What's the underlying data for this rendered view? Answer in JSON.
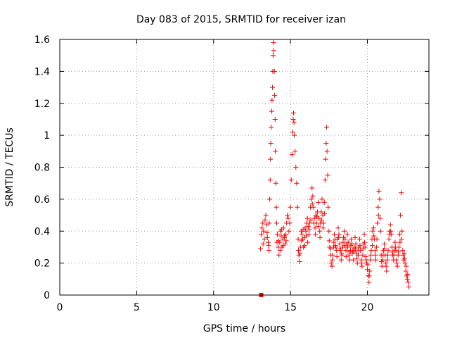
{
  "chart_data": {
    "type": "scatter",
    "title": "Day 083 of 2015, SRMTID for receiver izan",
    "xlabel": "GPS time / hours",
    "ylabel": "SRMTID / TECUs",
    "xlim": [
      0,
      24
    ],
    "ylim": [
      0,
      1.6
    ],
    "x_ticks": [
      0,
      5,
      10,
      15,
      20
    ],
    "x_tick_labels": [
      "0",
      "5",
      "10",
      "15",
      "20"
    ],
    "y_ticks": [
      0,
      0.2,
      0.4,
      0.6,
      0.8,
      1.0,
      1.2,
      1.4,
      1.6
    ],
    "y_tick_labels": [
      "0",
      "0.2",
      "0.4",
      "0.6",
      "0.8",
      "1",
      "1.2",
      "1.4",
      "1.6"
    ],
    "grid": true,
    "marker": "plus",
    "color": "#ff0000",
    "square_markers": [
      {
        "x": 13.1,
        "y": 0.0
      }
    ],
    "series": [
      {
        "name": "SRMTID",
        "points": [
          [
            13.05,
            0.29
          ],
          [
            13.1,
            0.38
          ],
          [
            13.15,
            0.42
          ],
          [
            13.2,
            0.45
          ],
          [
            13.25,
            0.4
          ],
          [
            13.3,
            0.35
          ],
          [
            13.35,
            0.47
          ],
          [
            13.4,
            0.5
          ],
          [
            13.45,
            0.44
          ],
          [
            13.5,
            0.36
          ],
          [
            13.55,
            0.33
          ],
          [
            13.6,
            0.28
          ],
          [
            13.62,
            0.45
          ],
          [
            13.65,
            0.6
          ],
          [
            13.68,
            0.72
          ],
          [
            13.7,
            0.85
          ],
          [
            13.72,
            0.95
          ],
          [
            13.75,
            1.05
          ],
          [
            13.78,
            1.15
          ],
          [
            13.8,
            1.22
          ],
          [
            13.83,
            1.3
          ],
          [
            13.85,
            1.4
          ],
          [
            13.87,
            1.5
          ],
          [
            13.9,
            1.58
          ],
          [
            13.92,
            1.53
          ],
          [
            13.95,
            1.4
          ],
          [
            13.97,
            1.25
          ],
          [
            14.0,
            1.1
          ],
          [
            14.02,
            0.9
          ],
          [
            14.05,
            0.7
          ],
          [
            14.08,
            0.55
          ],
          [
            14.1,
            0.45
          ],
          [
            14.15,
            0.38
          ],
          [
            14.2,
            0.3
          ],
          [
            14.25,
            0.25
          ],
          [
            14.3,
            0.33
          ],
          [
            14.35,
            0.4
          ],
          [
            14.4,
            0.37
          ],
          [
            14.45,
            0.3
          ],
          [
            14.5,
            0.35
          ],
          [
            14.55,
            0.42
          ],
          [
            14.6,
            0.37
          ],
          [
            14.65,
            0.32
          ],
          [
            14.7,
            0.38
          ],
          [
            14.75,
            0.45
          ],
          [
            14.8,
            0.5
          ],
          [
            14.85,
            0.48
          ],
          [
            14.9,
            0.4
          ],
          [
            14.95,
            0.45
          ],
          [
            15.0,
            0.55
          ],
          [
            15.05,
            0.72
          ],
          [
            15.1,
            0.88
          ],
          [
            15.15,
            1.02
          ],
          [
            15.18,
            1.1
          ],
          [
            15.2,
            1.14
          ],
          [
            15.23,
            1.08
          ],
          [
            15.26,
            1.0
          ],
          [
            15.3,
            0.9
          ],
          [
            15.35,
            0.8
          ],
          [
            15.4,
            0.7
          ],
          [
            15.45,
            0.55
          ],
          [
            15.5,
            0.35
          ],
          [
            15.55,
            0.25
          ],
          [
            15.6,
            0.21
          ],
          [
            15.65,
            0.3
          ],
          [
            15.7,
            0.4
          ],
          [
            15.75,
            0.38
          ],
          [
            15.8,
            0.35
          ],
          [
            15.85,
            0.3
          ],
          [
            15.9,
            0.36
          ],
          [
            15.95,
            0.42
          ],
          [
            16.0,
            0.4
          ],
          [
            16.05,
            0.45
          ],
          [
            16.1,
            0.48
          ],
          [
            16.15,
            0.43
          ],
          [
            16.2,
            0.38
          ],
          [
            16.25,
            0.45
          ],
          [
            16.3,
            0.55
          ],
          [
            16.35,
            0.6
          ],
          [
            16.4,
            0.67
          ],
          [
            16.45,
            0.62
          ],
          [
            16.5,
            0.55
          ],
          [
            16.55,
            0.48
          ],
          [
            16.6,
            0.42
          ],
          [
            16.65,
            0.5
          ],
          [
            16.7,
            0.45
          ],
          [
            16.75,
            0.52
          ],
          [
            16.8,
            0.58
          ],
          [
            16.85,
            0.48
          ],
          [
            16.9,
            0.4
          ],
          [
            16.95,
            0.45
          ],
          [
            17.0,
            0.52
          ],
          [
            17.05,
            0.6
          ],
          [
            17.1,
            0.5
          ],
          [
            17.15,
            0.45
          ],
          [
            17.2,
            0.58
          ],
          [
            17.25,
            0.72
          ],
          [
            17.28,
            0.85
          ],
          [
            17.32,
            0.95
          ],
          [
            17.35,
            1.05
          ],
          [
            17.38,
            0.9
          ],
          [
            17.42,
            0.75
          ],
          [
            17.45,
            0.55
          ],
          [
            17.5,
            0.4
          ],
          [
            17.55,
            0.3
          ],
          [
            17.6,
            0.25
          ],
          [
            17.65,
            0.2
          ],
          [
            17.7,
            0.18
          ],
          [
            17.75,
            0.25
          ],
          [
            17.8,
            0.3
          ],
          [
            17.85,
            0.38
          ],
          [
            17.9,
            0.35
          ],
          [
            17.95,
            0.3
          ],
          [
            18.0,
            0.28
          ],
          [
            18.05,
            0.35
          ],
          [
            18.1,
            0.42
          ],
          [
            18.15,
            0.38
          ],
          [
            18.2,
            0.32
          ],
          [
            18.25,
            0.28
          ],
          [
            18.3,
            0.22
          ],
          [
            18.35,
            0.25
          ],
          [
            18.4,
            0.3
          ],
          [
            18.45,
            0.36
          ],
          [
            18.5,
            0.4
          ],
          [
            18.55,
            0.35
          ],
          [
            18.6,
            0.28
          ],
          [
            18.65,
            0.32
          ],
          [
            18.7,
            0.38
          ],
          [
            18.75,
            0.33
          ],
          [
            18.8,
            0.27
          ],
          [
            18.85,
            0.22
          ],
          [
            18.9,
            0.28
          ],
          [
            18.95,
            0.35
          ],
          [
            19.0,
            0.32
          ],
          [
            19.05,
            0.28
          ],
          [
            19.1,
            0.22
          ],
          [
            19.15,
            0.3
          ],
          [
            19.2,
            0.36
          ],
          [
            19.25,
            0.32
          ],
          [
            19.3,
            0.26
          ],
          [
            19.35,
            0.2
          ],
          [
            19.4,
            0.25
          ],
          [
            19.45,
            0.3
          ],
          [
            19.5,
            0.35
          ],
          [
            19.55,
            0.28
          ],
          [
            19.6,
            0.22
          ],
          [
            19.65,
            0.18
          ],
          [
            19.7,
            0.25
          ],
          [
            19.75,
            0.32
          ],
          [
            19.8,
            0.38
          ],
          [
            19.85,
            0.3
          ],
          [
            19.9,
            0.24
          ],
          [
            19.95,
            0.2
          ],
          [
            20.0,
            0.16
          ],
          [
            20.05,
            0.12
          ],
          [
            20.1,
            0.08
          ],
          [
            20.15,
            0.15
          ],
          [
            20.2,
            0.22
          ],
          [
            20.25,
            0.28
          ],
          [
            20.3,
            0.35
          ],
          [
            20.35,
            0.4
          ],
          [
            20.4,
            0.42
          ],
          [
            20.45,
            0.35
          ],
          [
            20.5,
            0.28
          ],
          [
            20.55,
            0.22
          ],
          [
            20.6,
            0.3
          ],
          [
            20.65,
            0.45
          ],
          [
            20.7,
            0.55
          ],
          [
            20.75,
            0.65
          ],
          [
            20.8,
            0.6
          ],
          [
            20.85,
            0.4
          ],
          [
            20.9,
            0.25
          ],
          [
            20.95,
            0.18
          ],
          [
            21.0,
            0.22
          ],
          [
            21.05,
            0.28
          ],
          [
            21.1,
            0.32
          ],
          [
            21.15,
            0.25
          ],
          [
            21.2,
            0.2
          ],
          [
            21.25,
            0.15
          ],
          [
            21.3,
            0.22
          ],
          [
            21.35,
            0.28
          ],
          [
            21.4,
            0.35
          ],
          [
            21.45,
            0.4
          ],
          [
            21.5,
            0.44
          ],
          [
            21.55,
            0.38
          ],
          [
            21.6,
            0.3
          ],
          [
            21.65,
            0.25
          ],
          [
            21.7,
            0.22
          ],
          [
            21.75,
            0.28
          ],
          [
            21.8,
            0.33
          ],
          [
            21.85,
            0.28
          ],
          [
            21.9,
            0.22
          ],
          [
            21.95,
            0.18
          ],
          [
            22.0,
            0.25
          ],
          [
            22.05,
            0.3
          ],
          [
            22.1,
            0.38
          ],
          [
            22.15,
            0.5
          ],
          [
            22.2,
            0.64
          ],
          [
            22.25,
            0.4
          ],
          [
            22.3,
            0.28
          ],
          [
            22.35,
            0.22
          ],
          [
            22.4,
            0.26
          ],
          [
            22.45,
            0.2
          ],
          [
            22.5,
            0.15
          ],
          [
            22.55,
            0.12
          ],
          [
            22.6,
            0.1
          ],
          [
            22.65,
            0.08
          ],
          [
            22.7,
            0.05
          ],
          [
            13.22,
            0.32
          ],
          [
            13.48,
            0.39
          ],
          [
            13.58,
            0.31
          ],
          [
            14.12,
            0.33
          ],
          [
            14.22,
            0.34
          ],
          [
            14.32,
            0.28
          ],
          [
            14.42,
            0.41
          ],
          [
            14.52,
            0.31
          ],
          [
            14.62,
            0.36
          ],
          [
            14.72,
            0.34
          ],
          [
            15.52,
            0.28
          ],
          [
            15.62,
            0.26
          ],
          [
            15.72,
            0.34
          ],
          [
            15.82,
            0.41
          ],
          [
            15.92,
            0.31
          ],
          [
            16.02,
            0.37
          ],
          [
            16.12,
            0.33
          ],
          [
            16.22,
            0.41
          ],
          [
            16.32,
            0.47
          ],
          [
            16.42,
            0.57
          ],
          [
            16.52,
            0.45
          ],
          [
            16.62,
            0.38
          ],
          [
            16.72,
            0.49
          ],
          [
            16.82,
            0.43
          ],
          [
            16.92,
            0.36
          ],
          [
            17.02,
            0.47
          ],
          [
            17.12,
            0.42
          ],
          [
            17.22,
            0.51
          ],
          [
            17.52,
            0.34
          ],
          [
            17.62,
            0.29
          ],
          [
            17.72,
            0.22
          ],
          [
            17.82,
            0.33
          ],
          [
            17.92,
            0.31
          ],
          [
            18.02,
            0.24
          ],
          [
            18.12,
            0.36
          ],
          [
            18.22,
            0.29
          ],
          [
            18.32,
            0.26
          ],
          [
            18.42,
            0.33
          ],
          [
            18.52,
            0.31
          ],
          [
            18.62,
            0.24
          ],
          [
            18.72,
            0.3
          ],
          [
            18.82,
            0.25
          ],
          [
            18.92,
            0.31
          ],
          [
            19.02,
            0.26
          ],
          [
            19.12,
            0.27
          ],
          [
            19.22,
            0.29
          ],
          [
            19.32,
            0.23
          ],
          [
            19.42,
            0.28
          ],
          [
            19.52,
            0.31
          ],
          [
            19.62,
            0.2
          ],
          [
            19.72,
            0.29
          ],
          [
            19.82,
            0.33
          ],
          [
            19.92,
            0.22
          ],
          [
            20.02,
            0.19
          ],
          [
            20.12,
            0.12
          ],
          [
            20.22,
            0.25
          ],
          [
            20.32,
            0.31
          ],
          [
            20.42,
            0.37
          ],
          [
            20.52,
            0.25
          ],
          [
            20.62,
            0.35
          ],
          [
            20.72,
            0.5
          ],
          [
            20.82,
            0.48
          ],
          [
            20.92,
            0.21
          ],
          [
            21.02,
            0.25
          ],
          [
            21.12,
            0.29
          ],
          [
            21.22,
            0.18
          ],
          [
            21.32,
            0.25
          ],
          [
            21.42,
            0.38
          ],
          [
            21.52,
            0.4
          ],
          [
            21.62,
            0.27
          ],
          [
            21.72,
            0.25
          ],
          [
            21.82,
            0.3
          ],
          [
            21.92,
            0.2
          ],
          [
            22.02,
            0.27
          ],
          [
            22.12,
            0.33
          ],
          [
            22.22,
            0.35
          ],
          [
            22.32,
            0.25
          ],
          [
            22.42,
            0.23
          ],
          [
            22.52,
            0.18
          ],
          [
            22.62,
            0.13
          ]
        ]
      }
    ]
  }
}
